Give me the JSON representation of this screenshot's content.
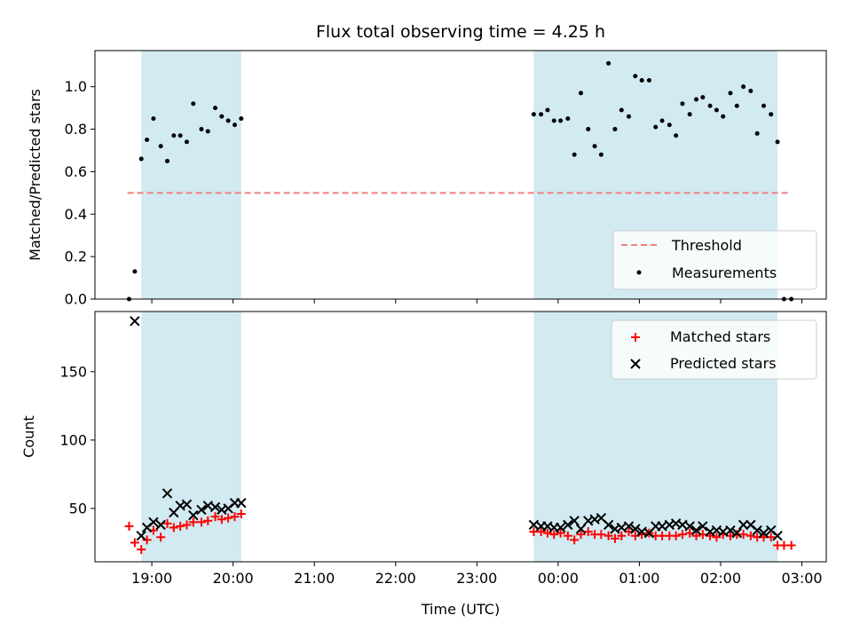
{
  "chart_data": {
    "type": "scatter",
    "title": "Flux total observing time = 4.25 h",
    "xlabel": "Time (UTC)",
    "x_ticks": [
      "19:00",
      "20:00",
      "21:00",
      "22:00",
      "23:00",
      "00:00",
      "01:00",
      "02:00",
      "03:00"
    ],
    "x_range_hours": [
      18.3,
      27.3
    ],
    "shaded_intervals_hours": [
      [
        18.87,
        20.1
      ],
      [
        23.7,
        26.7
      ]
    ],
    "colors": {
      "shade": "#add8e6",
      "threshold": "#f08080",
      "measurements": "#000000",
      "matched": "#ff0000",
      "predicted": "#000000"
    },
    "top": {
      "ylabel": "Matched/Predicted stars",
      "ylim": [
        0,
        1.17
      ],
      "y_ticks": [
        "0.0",
        "0.2",
        "0.4",
        "0.6",
        "0.8",
        "1.0"
      ],
      "y_tick_values": [
        0,
        0.2,
        0.4,
        0.6,
        0.8,
        1.0
      ],
      "threshold": {
        "value": 0.5,
        "x_range_hours": [
          18.7,
          26.85
        ]
      },
      "legend": {
        "position": "lower right",
        "threshold_label": "Threshold",
        "measurements_label": "Measurements"
      },
      "measurements": {
        "x": [
          18.72,
          18.79,
          18.87,
          18.94,
          19.02,
          19.11,
          19.19,
          19.27,
          19.35,
          19.43,
          19.51,
          19.61,
          19.69,
          19.78,
          19.86,
          19.94,
          20.02,
          20.1,
          23.7,
          23.79,
          23.87,
          23.95,
          24.03,
          24.12,
          24.2,
          24.28,
          24.37,
          24.45,
          24.53,
          24.62,
          24.7,
          24.78,
          24.87,
          24.95,
          25.03,
          25.12,
          25.2,
          25.28,
          25.37,
          25.45,
          25.53,
          25.62,
          25.7,
          25.78,
          25.87,
          25.95,
          26.03,
          26.12,
          26.2,
          26.28,
          26.37,
          26.45,
          26.53,
          26.62,
          26.7,
          26.78,
          26.87
        ],
        "y": [
          0.0,
          0.13,
          0.66,
          0.75,
          0.85,
          0.72,
          0.65,
          0.77,
          0.77,
          0.74,
          0.92,
          0.8,
          0.79,
          0.9,
          0.86,
          0.84,
          0.82,
          0.85,
          0.87,
          0.87,
          0.89,
          0.84,
          0.84,
          0.85,
          0.68,
          0.97,
          0.8,
          0.72,
          0.68,
          1.11,
          0.8,
          0.89,
          0.86,
          1.05,
          1.03,
          1.03,
          0.81,
          0.84,
          0.82,
          0.77,
          0.92,
          0.87,
          0.94,
          0.95,
          0.91,
          0.89,
          0.86,
          0.97,
          0.91,
          1.0,
          0.98,
          0.78,
          0.91,
          0.87,
          0.74,
          0.0,
          0.0
        ]
      }
    },
    "bottom": {
      "ylabel": "Count",
      "ylim": [
        11,
        194
      ],
      "y_ticks": [
        "50",
        "100",
        "150"
      ],
      "y_tick_values": [
        50,
        100,
        150
      ],
      "legend": {
        "position": "upper right",
        "matched_label": "Matched stars",
        "predicted_label": "Predicted stars"
      },
      "matched": {
        "x": [
          18.72,
          18.79,
          18.87,
          18.94,
          19.02,
          19.11,
          19.19,
          19.27,
          19.35,
          19.43,
          19.51,
          19.61,
          19.69,
          19.78,
          19.86,
          19.94,
          20.02,
          20.1,
          23.7,
          23.79,
          23.87,
          23.95,
          24.03,
          24.12,
          24.2,
          24.28,
          24.37,
          24.45,
          24.53,
          24.62,
          24.7,
          24.78,
          24.87,
          24.95,
          25.03,
          25.12,
          25.2,
          25.28,
          25.37,
          25.45,
          25.53,
          25.62,
          25.7,
          25.78,
          25.87,
          25.95,
          26.03,
          26.12,
          26.2,
          26.28,
          26.37,
          26.45,
          26.53,
          26.62,
          26.7,
          26.78,
          26.87
        ],
        "y": [
          37,
          25,
          20,
          27,
          34,
          29,
          39,
          36,
          37,
          38,
          40,
          40,
          41,
          44,
          42,
          43,
          44,
          46,
          33,
          33,
          32,
          31,
          32,
          30,
          27,
          31,
          33,
          31,
          31,
          30,
          28,
          30,
          33,
          30,
          31,
          32,
          30,
          30,
          30,
          30,
          31,
          32,
          30,
          31,
          30,
          29,
          31,
          30,
          31,
          31,
          30,
          29,
          29,
          29,
          23,
          23,
          23
        ]
      },
      "predicted": {
        "x": [
          18.79,
          18.87,
          18.94,
          19.02,
          19.11,
          19.19,
          19.27,
          19.35,
          19.43,
          19.51,
          19.61,
          19.69,
          19.78,
          19.86,
          19.94,
          20.02,
          20.1,
          23.7,
          23.79,
          23.87,
          23.95,
          24.03,
          24.12,
          24.2,
          24.28,
          24.37,
          24.45,
          24.53,
          24.62,
          24.7,
          24.78,
          24.87,
          24.95,
          25.03,
          25.12,
          25.2,
          25.28,
          25.37,
          25.45,
          25.53,
          25.62,
          25.7,
          25.78,
          25.87,
          25.95,
          26.03,
          26.12,
          26.2,
          26.28,
          26.37,
          26.45,
          26.53,
          26.62,
          26.7
        ],
        "y": [
          187,
          30,
          36,
          40,
          38,
          61,
          47,
          52,
          53,
          45,
          49,
          52,
          51,
          49,
          50,
          54,
          54,
          38,
          37,
          37,
          36,
          36,
          38,
          41,
          35,
          41,
          42,
          43,
          38,
          35,
          36,
          37,
          35,
          33,
          32,
          37,
          37,
          38,
          39,
          38,
          37,
          34,
          37,
          33,
          34,
          33,
          34,
          32,
          38,
          38,
          34,
          32,
          34,
          30
        ]
      }
    }
  }
}
